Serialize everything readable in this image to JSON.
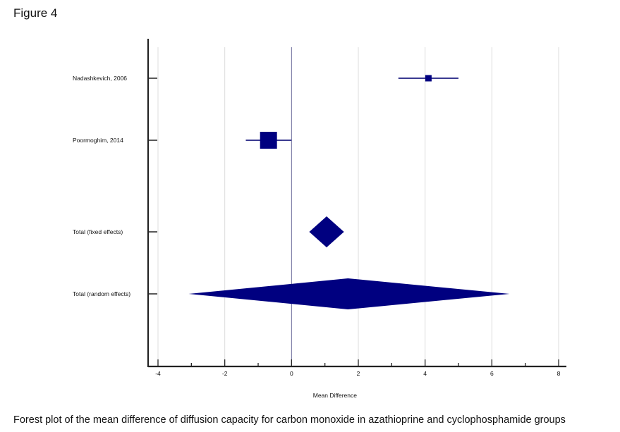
{
  "figure_label": "Figure 4",
  "caption": "Forest plot of the mean difference of diffusion capacity for carbon monoxide in azathioprine and cyclophosphamide groups",
  "chart_data": {
    "type": "forest",
    "title": "",
    "xlabel": "Mean Difference",
    "ylabel": "",
    "xlim": [
      -4,
      8
    ],
    "xticks": [
      -4,
      -2,
      0,
      2,
      4,
      6,
      8
    ],
    "grid": true,
    "color": "#000080",
    "studies": [
      {
        "label": "Nadashkevich, 2006",
        "estimate": 4.1,
        "ci_low": 3.2,
        "ci_high": 5.0,
        "marker": "square",
        "weight": "small"
      },
      {
        "label": "Poormoghim, 2014",
        "estimate": -0.69,
        "ci_low": -1.37,
        "ci_high": 0.0,
        "marker": "square",
        "weight": "large"
      }
    ],
    "summaries": [
      {
        "label": "Total (fixed effects)",
        "estimate": 1.05,
        "ci_low": 0.53,
        "ci_high": 1.57,
        "marker": "diamond"
      },
      {
        "label": "Total (random effects)",
        "estimate": 1.69,
        "ci_low": -3.08,
        "ci_high": 6.53,
        "marker": "diamond"
      }
    ]
  }
}
